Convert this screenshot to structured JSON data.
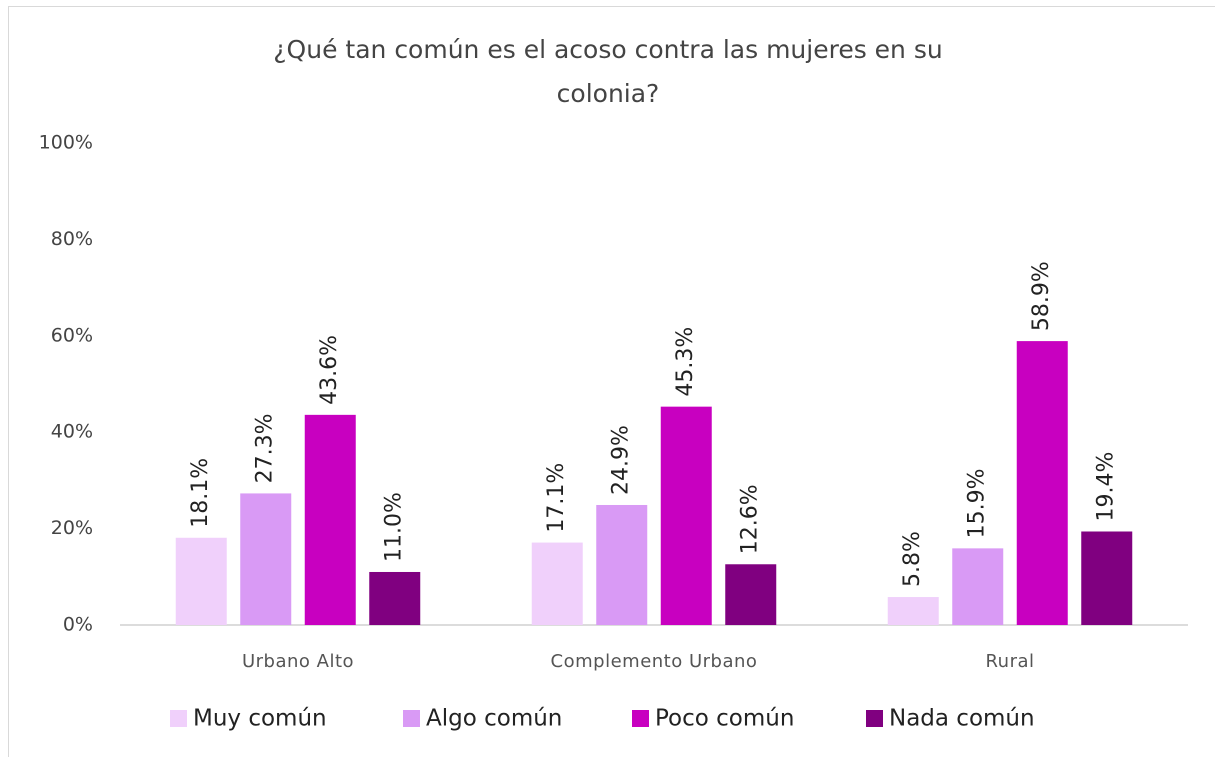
{
  "chart_data": {
    "type": "bar",
    "title": "¿Qué tan común es el acoso contra las mujeres en su colonia?",
    "categories": [
      "Urbano Alto",
      "Complemento Urbano",
      "Rural"
    ],
    "series": [
      {
        "name": "Muy común",
        "color": "#f0d0fb",
        "values": [
          18.1,
          17.1,
          5.8
        ],
        "value_labels": [
          "18.1%",
          "17.1%",
          "5.8%"
        ]
      },
      {
        "name": "Algo común",
        "color": "#d99af5",
        "values": [
          27.3,
          24.9,
          15.9
        ],
        "value_labels": [
          "27.3%",
          "24.9%",
          "15.9%"
        ]
      },
      {
        "name": "Poco común",
        "color": "#c800c0",
        "values": [
          43.6,
          45.3,
          58.9
        ],
        "value_labels": [
          "43.6%",
          "45.3%",
          "58.9%"
        ]
      },
      {
        "name": "Nada común",
        "color": "#800080",
        "values": [
          11.0,
          12.6,
          19.4
        ],
        "value_labels": [
          "11.0%",
          "12.6%",
          "19.4%"
        ]
      }
    ],
    "ylim": [
      0,
      100
    ],
    "yticks": [
      {
        "value": 0,
        "label": "0%"
      },
      {
        "value": 20,
        "label": "20%"
      },
      {
        "value": 40,
        "label": "40%"
      },
      {
        "value": 60,
        "label": "60%"
      },
      {
        "value": 80,
        "label": "80%"
      },
      {
        "value": 100,
        "label": "100%"
      }
    ],
    "legend": "bottom"
  }
}
